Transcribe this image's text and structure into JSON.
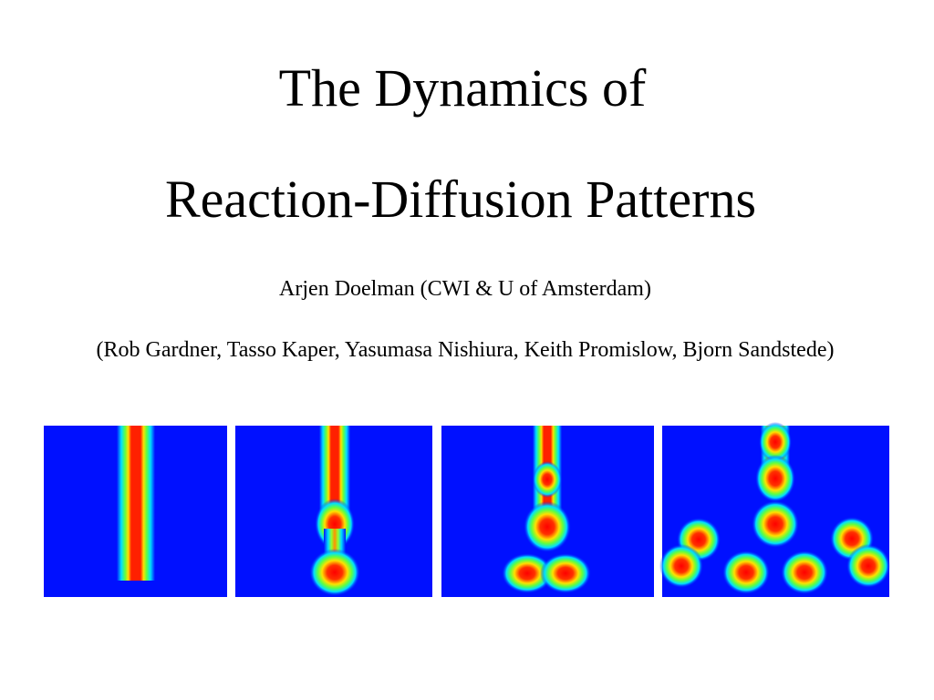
{
  "title": {
    "line1": "The Dynamics of",
    "line2": "Reaction-Diffusion Patterns"
  },
  "author": "Arjen Doelman (CWI & U of Amsterdam)",
  "collaborators": "(Rob Gardner, Tasso Kaper, Yasumasa Nishiura, Keith Promislow, Bjorn Sandstede)"
}
